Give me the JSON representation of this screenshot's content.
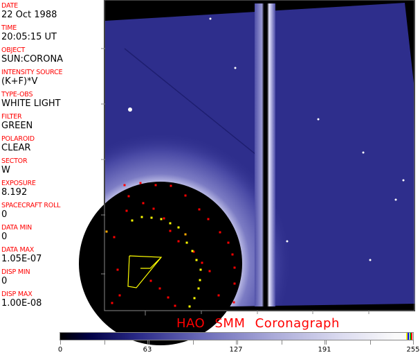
{
  "info_panel": [
    {
      "label": "DATE",
      "value": "22 Oct 1988"
    },
    {
      "label": "TIME",
      "value": "20:05:15 UT"
    },
    {
      "label": "OBJECT",
      "value": "SUN:CORONA"
    },
    {
      "label": "INTENSITY SOURCE",
      "value": "(K+F)*V"
    },
    {
      "label": "TYPE-OBS",
      "value": "WHITE LIGHT"
    },
    {
      "label": "FILTER",
      "value": "GREEN"
    },
    {
      "label": "POLAROID",
      "value": "CLEAR"
    },
    {
      "label": "SECTOR",
      "value": "W"
    },
    {
      "label": "EXPOSURE",
      "value": "8.192"
    },
    {
      "label": "SPACECRAFT ROLL",
      "value": "0"
    },
    {
      "label": "DATA MIN",
      "value": "0"
    },
    {
      "label": "DATA MAX",
      "value": "1.05E-07"
    },
    {
      "label": "DISP MIN",
      "value": "0"
    },
    {
      "label": "DISP MAX",
      "value": "1.00E-08"
    }
  ],
  "title": "HAO  SMM Coronagraph",
  "colorbar": {
    "tick_labels": [
      "0",
      "63",
      "127",
      "191",
      "255"
    ],
    "min": 0,
    "max": 255,
    "colors": {
      "low": "#000000",
      "mid": "#6a6ab8",
      "high": "#fafafa"
    },
    "reserved_colors": [
      "#ffff00",
      "#0000ff",
      "#00c000",
      "#ff0000"
    ]
  },
  "image": {
    "colors": {
      "corona": "#2e2e8c",
      "occulter": "#000000",
      "markers_red": "#ff0000",
      "markers_yellow": "#ffff00"
    }
  }
}
